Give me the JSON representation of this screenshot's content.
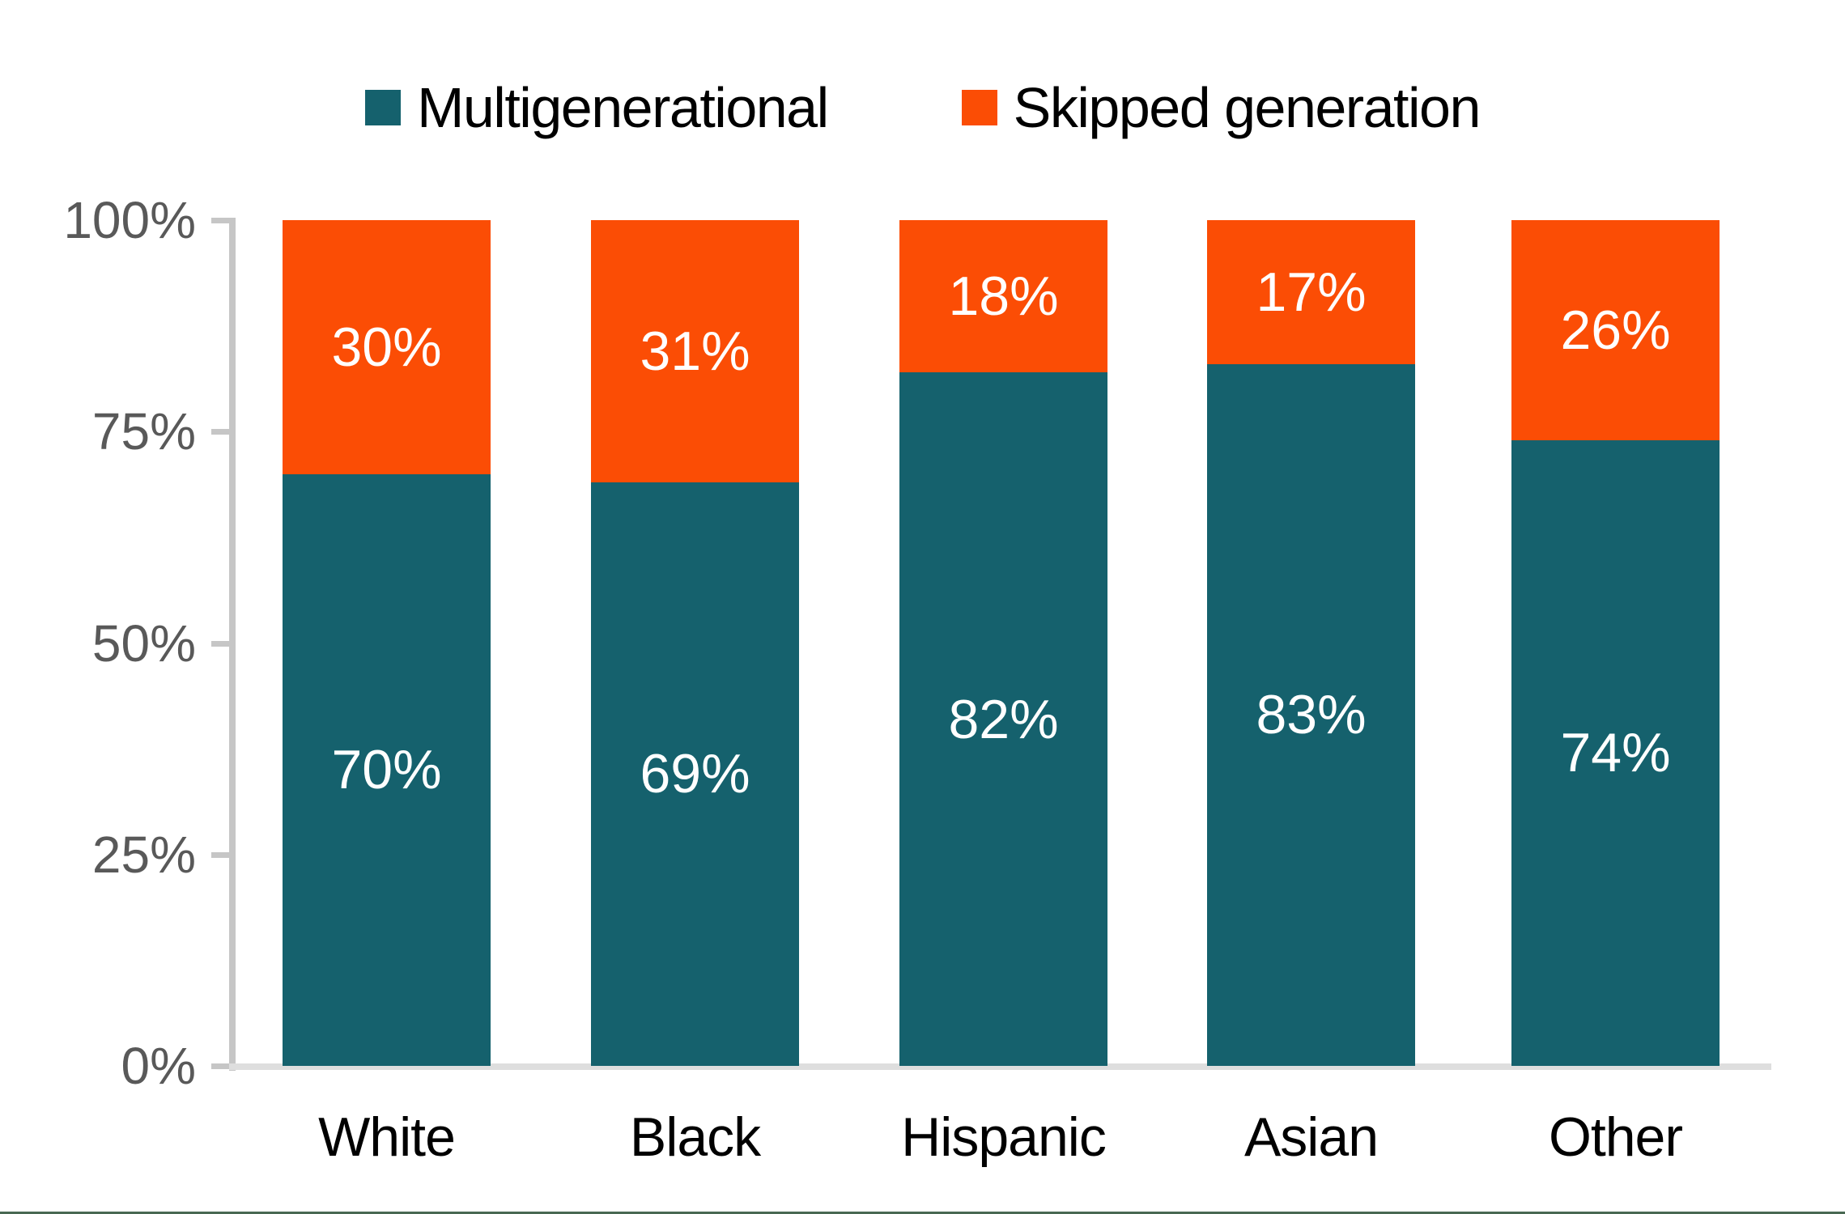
{
  "legend": {
    "items": [
      {
        "key": "multigenerational",
        "label": "Multigenerational",
        "color": "#15616D"
      },
      {
        "key": "skipped-generation",
        "label": "Skipped generation",
        "color": "#FB4D05"
      }
    ]
  },
  "chart_data": {
    "type": "bar",
    "stacked": true,
    "orientation": "vertical",
    "title": "",
    "xlabel": "",
    "ylabel": "",
    "categories": [
      "White",
      "Black",
      "Hispanic",
      "Asian",
      "Other"
    ],
    "series": [
      {
        "name": "Multigenerational",
        "color": "#15616D",
        "values": [
          70,
          69,
          82,
          83,
          74
        ]
      },
      {
        "name": "Skipped generation",
        "color": "#FB4D05",
        "values": [
          30,
          31,
          18,
          17,
          26
        ]
      }
    ],
    "value_suffix": "%",
    "ylim": [
      0,
      100
    ],
    "yticks": [
      0,
      25,
      50,
      75,
      100
    ],
    "ytick_labels": [
      "0%",
      "25%",
      "50%",
      "75%",
      "100%"
    ],
    "legend_position": "top",
    "grid": false,
    "data_labels_shown": true
  },
  "colors": {
    "background": "#FFFFFF",
    "y_axis_line": "#C6C6C6",
    "x_axis_line": "#DEDEDE",
    "tick_label": "#595959",
    "category_label": "#000000",
    "data_label": "#FFFFFF",
    "bottom_border": "#486852"
  }
}
